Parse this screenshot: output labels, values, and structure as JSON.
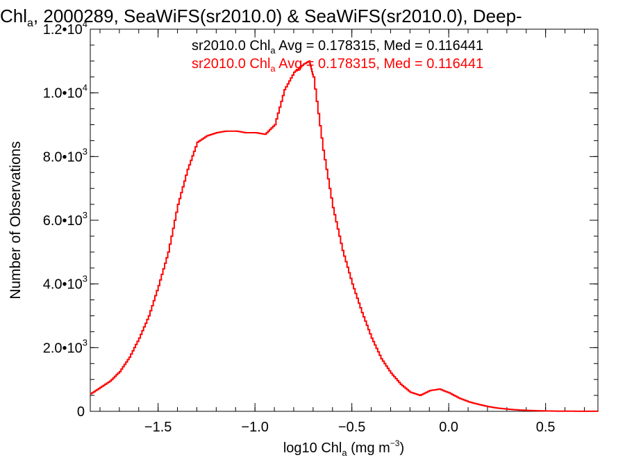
{
  "chart_data": {
    "type": "line",
    "title": {
      "prefix": "Chl",
      "sub": "a",
      "rest": ", 2000289, SeaWiFS(sr2010.0) & SeaWiFS(sr2010.0), Deep-"
    },
    "xlabel": {
      "prefix": "log10 Chl",
      "sub": "a",
      "mid": " (mg m",
      "sup": "−3",
      "end": ")"
    },
    "ylabel": "Number of Observations",
    "xlim": [
      -1.85,
      0.77
    ],
    "ylim": [
      0,
      12000
    ],
    "x_ticks": [
      {
        "value": -1.5,
        "label": "−1.5"
      },
      {
        "value": -1.0,
        "label": "−1.0"
      },
      {
        "value": -0.5,
        "label": "−0.5"
      },
      {
        "value": 0.0,
        "label": "0.0"
      },
      {
        "value": 0.5,
        "label": "0.5"
      }
    ],
    "y_ticks": [
      {
        "value": 0,
        "label": "0",
        "exp": ""
      },
      {
        "value": 2000,
        "label": "2.0•10",
        "exp": "3"
      },
      {
        "value": 4000,
        "label": "4.0•10",
        "exp": "3"
      },
      {
        "value": 6000,
        "label": "6.0•10",
        "exp": "3"
      },
      {
        "value": 8000,
        "label": "8.0•10",
        "exp": "3"
      },
      {
        "value": 10000,
        "label": "1.0•10",
        "exp": "4"
      },
      {
        "value": 12000,
        "label": "1.2•10",
        "exp": "4"
      }
    ],
    "annotations": [
      {
        "prefix": "sr2010.0 Chl",
        "sub": "a",
        "rest": " Avg = 0.178315, Med = 0.116441",
        "color": "#000000"
      },
      {
        "prefix": "sr2010.0 Chl",
        "sub": "a",
        "rest": " Avg = 0.178315, Med = 0.116441",
        "color": "#ff0000"
      }
    ],
    "series": [
      {
        "color": "#ff0000",
        "x": [
          -1.85,
          -1.8,
          -1.75,
          -1.7,
          -1.65,
          -1.6,
          -1.55,
          -1.5,
          -1.45,
          -1.4,
          -1.35,
          -1.3,
          -1.25,
          -1.2,
          -1.15,
          -1.1,
          -1.05,
          -1.0,
          -0.95,
          -0.9,
          -0.85,
          -0.8,
          -0.75,
          -0.72,
          -0.7,
          -0.65,
          -0.6,
          -0.55,
          -0.5,
          -0.45,
          -0.4,
          -0.35,
          -0.3,
          -0.25,
          -0.2,
          -0.15,
          -0.1,
          -0.05,
          0.0,
          0.05,
          0.1,
          0.15,
          0.2,
          0.25,
          0.3,
          0.35,
          0.4,
          0.45,
          0.5,
          0.55,
          0.6,
          0.65,
          0.7,
          0.77
        ],
        "y": [
          550,
          750,
          950,
          1250,
          1700,
          2300,
          3000,
          3950,
          5000,
          6500,
          7600,
          8450,
          8650,
          8750,
          8800,
          8800,
          8750,
          8750,
          8700,
          9000,
          10100,
          10650,
          10900,
          11000,
          10500,
          8200,
          6400,
          5050,
          4000,
          3100,
          2300,
          1650,
          1200,
          850,
          600,
          500,
          650,
          700,
          580,
          420,
          300,
          220,
          150,
          100,
          70,
          45,
          30,
          20,
          12,
          8,
          5,
          3,
          2,
          1
        ]
      }
    ]
  }
}
